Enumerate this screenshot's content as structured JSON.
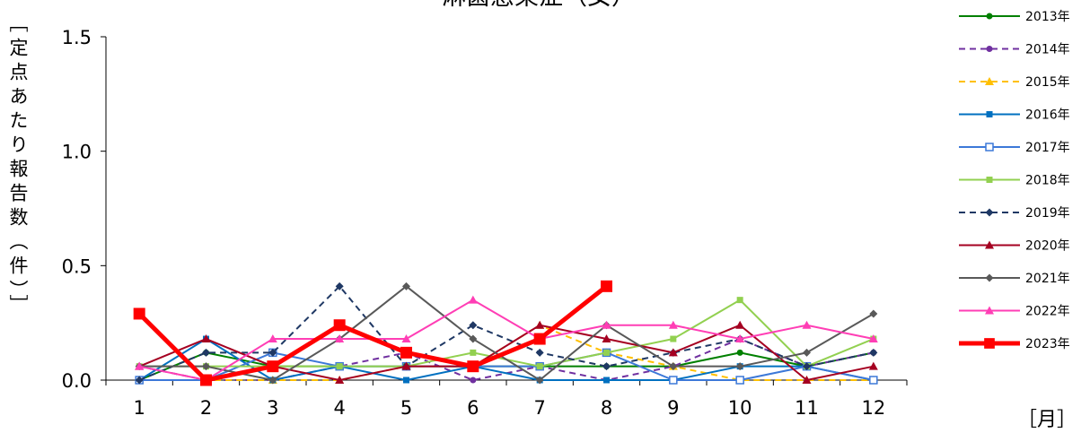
{
  "chart_data": {
    "type": "line",
    "title": "淋菌感染症（女）",
    "ylabel": "［定点あたり報告数（件）］",
    "xlabel": "［月］",
    "ylim": [
      0,
      1.5
    ],
    "yticks": [
      "0.0",
      "0.5",
      "1.0",
      "1.5"
    ],
    "categories": [
      "1",
      "2",
      "3",
      "4",
      "5",
      "6",
      "7",
      "8",
      "9",
      "10",
      "11",
      "12"
    ],
    "legend_position": "right",
    "series": [
      {
        "name": "2013年",
        "color": "#008000",
        "dash": "solid",
        "marker": "circle",
        "width": 2,
        "values": [
          0.0,
          0.12,
          0.06,
          0.06,
          0.06,
          0.06,
          0.06,
          0.06,
          0.06,
          0.12,
          0.06,
          0.12
        ]
      },
      {
        "name": "2014年",
        "color": "#7030A0",
        "dash": "dashed",
        "marker": "circle",
        "width": 2,
        "values": [
          0.06,
          0.0,
          0.0,
          0.06,
          0.12,
          0.0,
          0.06,
          0.0,
          0.06,
          0.18,
          0.06,
          0.12
        ]
      },
      {
        "name": "2015年",
        "color": "#FFC000",
        "dash": "dashed",
        "marker": "triangle",
        "width": 2,
        "values": [
          0.0,
          0.0,
          0.0,
          0.0,
          0.06,
          0.06,
          0.24,
          0.12,
          0.06,
          0.0,
          0.0,
          0.0
        ]
      },
      {
        "name": "2016年",
        "color": "#0070C0",
        "dash": "solid",
        "marker": "square",
        "width": 2,
        "values": [
          0.0,
          0.18,
          0.0,
          0.06,
          0.0,
          0.06,
          0.0,
          0.0,
          0.0,
          0.06,
          0.06,
          0.0
        ]
      },
      {
        "name": "2017年",
        "color": "#3C78D8",
        "dash": "solid",
        "marker": "square-open",
        "width": 2,
        "values": [
          0.0,
          0.0,
          0.12,
          0.06,
          0.06,
          0.06,
          0.06,
          0.12,
          0.0,
          0.0,
          0.06,
          0.0
        ]
      },
      {
        "name": "2018年",
        "color": "#92D050",
        "dash": "solid",
        "marker": "square",
        "width": 2,
        "values": [
          0.06,
          0.06,
          0.06,
          0.06,
          0.06,
          0.12,
          0.06,
          0.12,
          0.18,
          0.35,
          0.06,
          0.18
        ]
      },
      {
        "name": "2019年",
        "color": "#1F3864",
        "dash": "dashed",
        "marker": "diamond",
        "width": 2,
        "values": [
          0.0,
          0.12,
          0.12,
          0.41,
          0.06,
          0.24,
          0.12,
          0.06,
          0.12,
          0.18,
          0.06,
          0.12
        ]
      },
      {
        "name": "2020年",
        "color": "#A50021",
        "dash": "solid",
        "marker": "triangle",
        "width": 2,
        "values": [
          0.06,
          0.18,
          0.06,
          0.0,
          0.06,
          0.06,
          0.24,
          0.18,
          0.12,
          0.24,
          0.0,
          0.06
        ]
      },
      {
        "name": "2021年",
        "color": "#595959",
        "dash": "solid",
        "marker": "diamond",
        "width": 2,
        "values": [
          0.06,
          0.06,
          0.0,
          0.18,
          0.41,
          0.18,
          0.0,
          0.24,
          0.06,
          0.06,
          0.12,
          0.29
        ]
      },
      {
        "name": "2022年",
        "color": "#FF3EB5",
        "dash": "solid",
        "marker": "triangle",
        "width": 2,
        "values": [
          0.06,
          0.0,
          0.18,
          0.18,
          0.18,
          0.35,
          0.18,
          0.24,
          0.24,
          0.18,
          0.24,
          0.18
        ]
      },
      {
        "name": "2023年",
        "color": "#FF0000",
        "dash": "solid",
        "marker": "square-big",
        "width": 5,
        "values": [
          0.29,
          0.0,
          0.06,
          0.24,
          0.12,
          0.06,
          0.18,
          0.41,
          null,
          null,
          null,
          null
        ]
      }
    ]
  }
}
